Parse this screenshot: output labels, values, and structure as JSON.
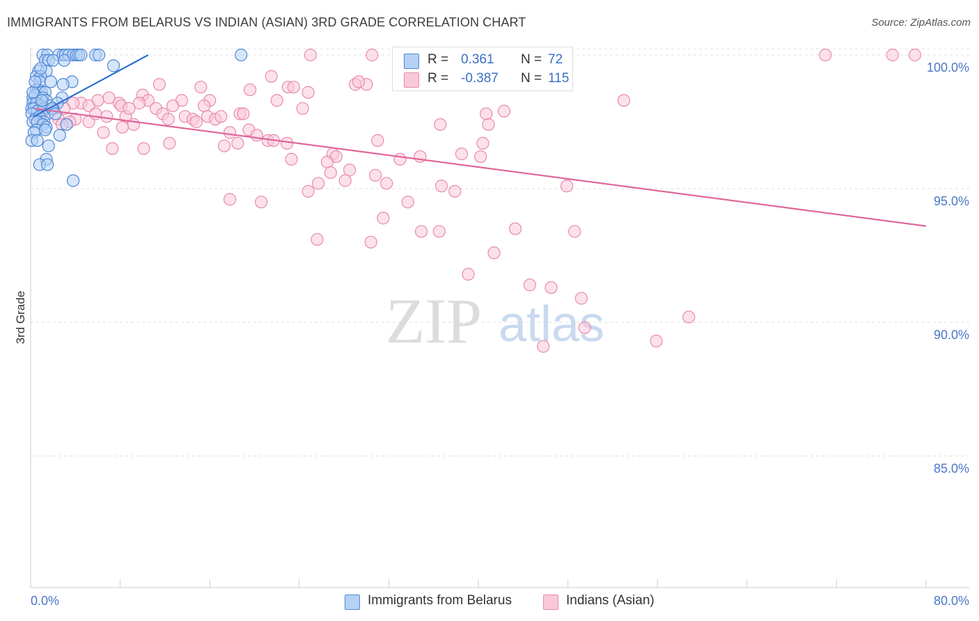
{
  "title": "IMMIGRANTS FROM BELARUS VS INDIAN (ASIAN) 3RD GRADE CORRELATION CHART",
  "source": "Source: ZipAtlas.com",
  "watermark": {
    "zip": "ZIP",
    "atlas": "atlas"
  },
  "legend_top": {
    "r_label": "R =",
    "n_label": "N =",
    "rows": [
      {
        "r": "0.361",
        "n": "72"
      },
      {
        "r": "-0.387",
        "n": "115"
      }
    ]
  },
  "colors": {
    "blue_fill": "#b5d1f5",
    "blue_stroke": "#4f86d4",
    "blue_line": "#2f6fd0",
    "pink_fill": "#f9c9da",
    "pink_stroke": "#e88aab",
    "pink_line": "#e0679a",
    "tick_text": "#4a78c8",
    "grid": "#dddddd"
  },
  "chart_data": {
    "type": "scatter",
    "title": "IMMIGRANTS FROM BELARUS VS INDIAN (ASIAN) 3RD GRADE CORRELATION CHART",
    "xlabel": "",
    "ylabel": "3rd Grade",
    "xlim": [
      0,
      80
    ],
    "ylim": [
      80.5,
      100.5
    ],
    "x_tick_labels": [
      "0.0%",
      "80.0%"
    ],
    "y_ticks": [
      100,
      95,
      90,
      85
    ],
    "y_tick_labels": [
      "100.0%",
      "95.0%",
      "90.0%",
      "85.0%"
    ],
    "grid": true,
    "legend": [
      "Immigrants from Belarus",
      "Indians (Asian)"
    ],
    "series": [
      {
        "name": "Immigrants from Belarus",
        "color": "blue",
        "r": 0.361,
        "n": 72,
        "trend": {
          "x": [
            0.3,
            10.5
          ],
          "y": [
            97.7,
            100.0
          ]
        },
        "points": [
          [
            1.1,
            100
          ],
          [
            1.5,
            100
          ],
          [
            2.5,
            100
          ],
          [
            2.9,
            100
          ],
          [
            3.1,
            100
          ],
          [
            3.4,
            100
          ],
          [
            3.8,
            100
          ],
          [
            4.1,
            100
          ],
          [
            4.3,
            100
          ],
          [
            4.5,
            100
          ],
          [
            5.8,
            100
          ],
          [
            6.1,
            100
          ],
          [
            18.8,
            100
          ],
          [
            1.3,
            99.8
          ],
          [
            1.6,
            99.8
          ],
          [
            2.0,
            99.8
          ],
          [
            3.0,
            99.8
          ],
          [
            7.4,
            99.6
          ],
          [
            0.7,
            99.4
          ],
          [
            1.4,
            99.4
          ],
          [
            0.5,
            99.2
          ],
          [
            0.9,
            99.2
          ],
          [
            0.8,
            99.0
          ],
          [
            1.8,
            99.0
          ],
          [
            3.7,
            99.0
          ],
          [
            2.9,
            98.9
          ],
          [
            0.5,
            98.7
          ],
          [
            0.7,
            98.7
          ],
          [
            1.0,
            98.6
          ],
          [
            1.3,
            98.6
          ],
          [
            0.2,
            98.4
          ],
          [
            0.4,
            98.5
          ],
          [
            1.1,
            98.4
          ],
          [
            1.4,
            98.3
          ],
          [
            2.8,
            98.4
          ],
          [
            0.2,
            98.2
          ],
          [
            0.5,
            98.2
          ],
          [
            0.9,
            98.1
          ],
          [
            1.7,
            98.1
          ],
          [
            2.4,
            98.2
          ],
          [
            0.1,
            98.0
          ],
          [
            0.3,
            98.0
          ],
          [
            0.6,
            97.9
          ],
          [
            1.2,
            98.0
          ],
          [
            1.5,
            97.8
          ],
          [
            2.0,
            98.0
          ],
          [
            0.1,
            97.8
          ],
          [
            0.4,
            97.6
          ],
          [
            0.8,
            97.7
          ],
          [
            1.2,
            97.5
          ],
          [
            0.2,
            97.5
          ],
          [
            0.6,
            97.5
          ],
          [
            1.1,
            97.4
          ],
          [
            1.4,
            97.3
          ],
          [
            3.2,
            97.4
          ],
          [
            0.5,
            97.2
          ],
          [
            1.3,
            97.2
          ],
          [
            0.3,
            97.1
          ],
          [
            2.6,
            97.0
          ],
          [
            0.1,
            96.8
          ],
          [
            1.6,
            96.6
          ],
          [
            0.6,
            96.8
          ],
          [
            1.4,
            96.1
          ],
          [
            0.8,
            95.9
          ],
          [
            1.5,
            95.9
          ],
          [
            3.8,
            95.3
          ],
          [
            0.2,
            98.6
          ],
          [
            0.9,
            99.5
          ],
          [
            1.9,
            98.0
          ],
          [
            0.4,
            99.0
          ],
          [
            2.2,
            97.8
          ],
          [
            1.0,
            98.3
          ]
        ]
      },
      {
        "name": "Indians (Asian)",
        "color": "pink",
        "r": -0.387,
        "n": 115,
        "trend": {
          "x": [
            0.3,
            80.0
          ],
          "y": [
            98.0,
            93.6
          ]
        },
        "points": [
          [
            25.0,
            100
          ],
          [
            30.5,
            100
          ],
          [
            47.5,
            100
          ],
          [
            71.0,
            100
          ],
          [
            77.0,
            100
          ],
          [
            79.0,
            100
          ],
          [
            21.5,
            99.2
          ],
          [
            29.0,
            98.9
          ],
          [
            23.0,
            98.8
          ],
          [
            23.5,
            98.8
          ],
          [
            30.0,
            98.9
          ],
          [
            29.3,
            99.0
          ],
          [
            11.5,
            98.9
          ],
          [
            15.2,
            98.8
          ],
          [
            19.6,
            98.7
          ],
          [
            24.8,
            98.6
          ],
          [
            10.0,
            98.5
          ],
          [
            6.0,
            98.3
          ],
          [
            7.9,
            98.2
          ],
          [
            10.5,
            98.3
          ],
          [
            13.5,
            98.3
          ],
          [
            16.0,
            98.3
          ],
          [
            22.0,
            98.3
          ],
          [
            53.0,
            98.3
          ],
          [
            4.5,
            98.2
          ],
          [
            5.2,
            98.1
          ],
          [
            8.1,
            98.1
          ],
          [
            9.7,
            98.2
          ],
          [
            11.2,
            98.0
          ],
          [
            12.7,
            98.1
          ],
          [
            15.5,
            98.1
          ],
          [
            3.8,
            98.2
          ],
          [
            4.0,
            97.6
          ],
          [
            2.5,
            97.6
          ],
          [
            3.5,
            97.5
          ],
          [
            3.0,
            98.0
          ],
          [
            2.0,
            98.0
          ],
          [
            1.5,
            97.8
          ],
          [
            1.0,
            97.8
          ],
          [
            0.8,
            97.6
          ],
          [
            6.8,
            97.7
          ],
          [
            8.5,
            97.7
          ],
          [
            11.8,
            97.8
          ],
          [
            13.8,
            97.7
          ],
          [
            14.5,
            97.6
          ],
          [
            15.8,
            97.7
          ],
          [
            16.5,
            97.6
          ],
          [
            17.0,
            97.7
          ],
          [
            18.7,
            97.8
          ],
          [
            19.0,
            97.8
          ],
          [
            24.3,
            98.0
          ],
          [
            40.7,
            97.8
          ],
          [
            5.2,
            97.5
          ],
          [
            9.2,
            97.4
          ],
          [
            12.3,
            97.6
          ],
          [
            14.8,
            97.5
          ],
          [
            36.6,
            97.4
          ],
          [
            40.9,
            97.4
          ],
          [
            6.5,
            97.1
          ],
          [
            8.2,
            97.3
          ],
          [
            17.8,
            97.1
          ],
          [
            19.5,
            97.2
          ],
          [
            20.2,
            97.0
          ],
          [
            21.2,
            96.8
          ],
          [
            21.7,
            96.8
          ],
          [
            18.5,
            96.7
          ],
          [
            22.9,
            96.7
          ],
          [
            31.0,
            96.8
          ],
          [
            40.4,
            96.7
          ],
          [
            12.4,
            96.7
          ],
          [
            7.3,
            96.5
          ],
          [
            10.1,
            96.5
          ],
          [
            17.3,
            96.6
          ],
          [
            27.0,
            96.3
          ],
          [
            27.3,
            96.2
          ],
          [
            34.8,
            96.2
          ],
          [
            38.5,
            96.3
          ],
          [
            40.2,
            96.2
          ],
          [
            23.3,
            96.1
          ],
          [
            33.0,
            96.1
          ],
          [
            26.5,
            96.0
          ],
          [
            28.5,
            95.7
          ],
          [
            26.8,
            95.6
          ],
          [
            30.8,
            95.5
          ],
          [
            31.8,
            95.2
          ],
          [
            28.1,
            95.3
          ],
          [
            25.7,
            95.2
          ],
          [
            36.7,
            95.1
          ],
          [
            37.9,
            94.9
          ],
          [
            47.9,
            95.1
          ],
          [
            24.8,
            94.9
          ],
          [
            17.8,
            94.6
          ],
          [
            20.6,
            94.5
          ],
          [
            33.7,
            94.5
          ],
          [
            31.5,
            93.9
          ],
          [
            43.3,
            93.5
          ],
          [
            34.9,
            93.4
          ],
          [
            36.5,
            93.4
          ],
          [
            48.6,
            93.4
          ],
          [
            25.6,
            93.1
          ],
          [
            30.4,
            93.0
          ],
          [
            41.4,
            92.6
          ],
          [
            39.1,
            91.8
          ],
          [
            44.6,
            91.4
          ],
          [
            46.5,
            91.3
          ],
          [
            49.2,
            90.9
          ],
          [
            49.5,
            89.8
          ],
          [
            58.8,
            90.2
          ],
          [
            45.8,
            89.1
          ],
          [
            55.9,
            89.3
          ],
          [
            42.3,
            97.9
          ],
          [
            5.8,
            97.8
          ],
          [
            2.8,
            97.4
          ],
          [
            8.8,
            98.0
          ],
          [
            7.0,
            98.4
          ]
        ]
      }
    ]
  }
}
